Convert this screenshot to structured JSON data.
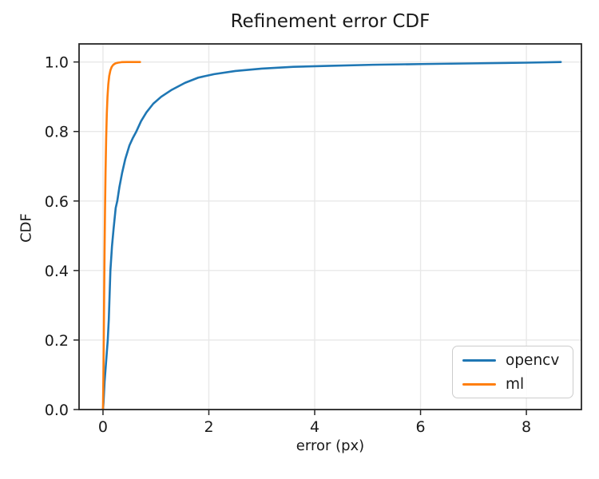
{
  "chart_data": {
    "type": "line",
    "title": "Refinement error CDF",
    "xlabel": "error (px)",
    "ylabel": "CDF",
    "xlim": [
      -0.452,
      9.04
    ],
    "ylim": [
      0,
      1.052
    ],
    "xtick_values": [
      0,
      2,
      4,
      6,
      8
    ],
    "xtick_labels": [
      "0",
      "2",
      "4",
      "6",
      "8"
    ],
    "ytick_values": [
      0.0,
      0.2,
      0.4,
      0.6,
      0.8,
      1.0
    ],
    "ytick_labels": [
      "0.0",
      "0.2",
      "0.4",
      "0.6",
      "0.8",
      "1.0"
    ],
    "grid": true,
    "legend_position": "lower right",
    "colors": {
      "background": "#ffffff",
      "grid": "#e8e8e8",
      "spine": "#262626",
      "text": "#1a1a1a",
      "opencv": "#1f77b4",
      "ml": "#ff7f0e"
    },
    "series": [
      {
        "name": "opencv",
        "color": "#1f77b4",
        "x": [
          0.0,
          0.01,
          0.02,
          0.03,
          0.05,
          0.07,
          0.09,
          0.11,
          0.14,
          0.17,
          0.2,
          0.24,
          0.27,
          0.31,
          0.36,
          0.42,
          0.5,
          0.56,
          0.63,
          0.72,
          0.82,
          0.95,
          1.1,
          1.3,
          1.55,
          1.8,
          2.1,
          2.5,
          3.0,
          3.6,
          4.3,
          5.1,
          6.0,
          7.0,
          8.0,
          8.65
        ],
        "y": [
          0.0,
          0.02,
          0.05,
          0.08,
          0.12,
          0.16,
          0.2,
          0.26,
          0.4,
          0.47,
          0.52,
          0.58,
          0.6,
          0.64,
          0.68,
          0.72,
          0.76,
          0.78,
          0.8,
          0.83,
          0.855,
          0.88,
          0.9,
          0.92,
          0.94,
          0.955,
          0.965,
          0.974,
          0.981,
          0.986,
          0.989,
          0.992,
          0.994,
          0.996,
          0.998,
          1.0
        ]
      },
      {
        "name": "ml",
        "color": "#ff7f0e",
        "x": [
          0.0,
          0.005,
          0.01,
          0.016,
          0.022,
          0.03,
          0.038,
          0.048,
          0.06,
          0.072,
          0.085,
          0.1,
          0.118,
          0.14,
          0.165,
          0.195,
          0.235,
          0.285,
          0.35,
          0.45,
          0.55,
          0.7
        ],
        "y": [
          0.0,
          0.06,
          0.13,
          0.22,
          0.33,
          0.46,
          0.57,
          0.68,
          0.78,
          0.85,
          0.9,
          0.935,
          0.96,
          0.976,
          0.986,
          0.992,
          0.996,
          0.998,
          0.9995,
          1.0,
          1.0,
          1.0
        ]
      }
    ]
  }
}
